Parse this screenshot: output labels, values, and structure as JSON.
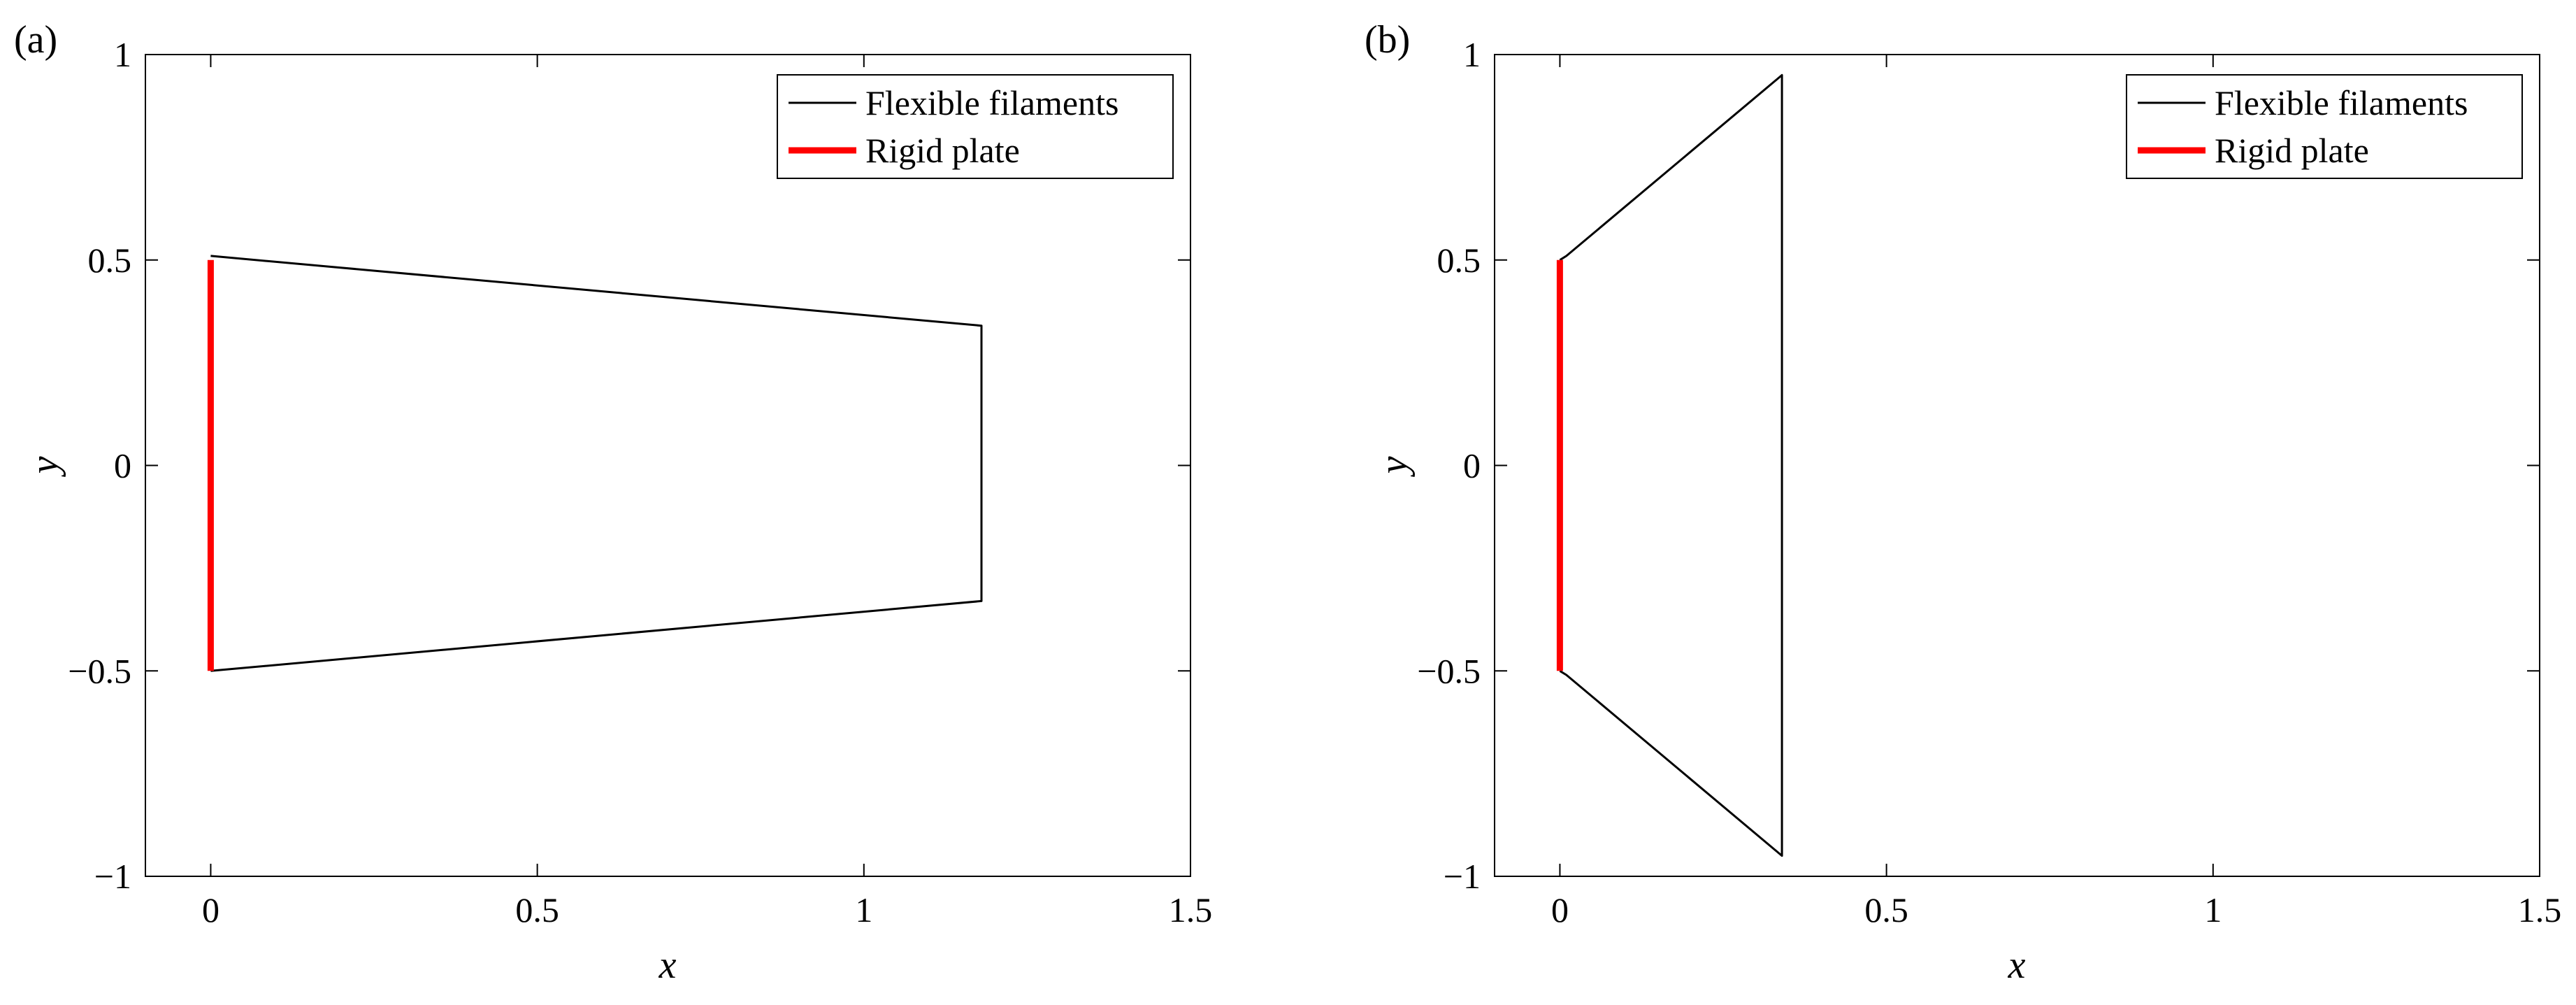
{
  "chart_data": [
    {
      "panel_label": "(a)",
      "type": "line",
      "xlabel": "x",
      "ylabel": "y",
      "xlim": [
        -0.1,
        1.5
      ],
      "ylim": [
        -1,
        1
      ],
      "xticks": [
        0,
        0.5,
        1,
        1.5
      ],
      "xtick_labels": [
        "0",
        "0.5",
        "1",
        "1.5"
      ],
      "yticks": [
        -1,
        -0.5,
        0,
        0.5,
        1
      ],
      "ytick_labels": [
        "−1",
        "−0.5",
        "0",
        "0.5",
        "1"
      ],
      "grid": false,
      "legend_position": "top-right",
      "series": [
        {
          "name": "Flexible filaments",
          "color": "#000000",
          "segments": [
            [
              [
                0,
                0.51
              ],
              [
                1.18,
                0.34
              ],
              [
                1.18,
                -0.33
              ],
              [
                0,
                -0.5
              ]
            ]
          ]
        },
        {
          "name": "Rigid plate",
          "color": "#ff0000",
          "segments": [
            [
              [
                0,
                0.5
              ],
              [
                0,
                -0.5
              ]
            ]
          ]
        }
      ]
    },
    {
      "panel_label": "(b)",
      "type": "line",
      "xlabel": "x",
      "ylabel": "y",
      "xlim": [
        -0.1,
        1.5
      ],
      "ylim": [
        -1,
        1
      ],
      "xticks": [
        0,
        0.5,
        1,
        1.5
      ],
      "xtick_labels": [
        "0",
        "0.5",
        "1",
        "1.5"
      ],
      "yticks": [
        -1,
        -0.5,
        0,
        0.5,
        1
      ],
      "ytick_labels": [
        "−1",
        "−0.5",
        "0",
        "0.5",
        "1"
      ],
      "grid": false,
      "legend_position": "top-right",
      "series": [
        {
          "name": "Flexible filaments",
          "color": "#000000",
          "segments": [
            [
              [
                0,
                0.5
              ],
              [
                0.01,
                0.51
              ],
              [
                0.34,
                0.95
              ],
              [
                0.34,
                -0.95
              ],
              [
                0.01,
                -0.51
              ],
              [
                0,
                -0.5
              ]
            ]
          ]
        },
        {
          "name": "Rigid plate",
          "color": "#ff0000",
          "segments": [
            [
              [
                0,
                0.5
              ],
              [
                0,
                -0.5
              ]
            ]
          ]
        }
      ]
    }
  ]
}
